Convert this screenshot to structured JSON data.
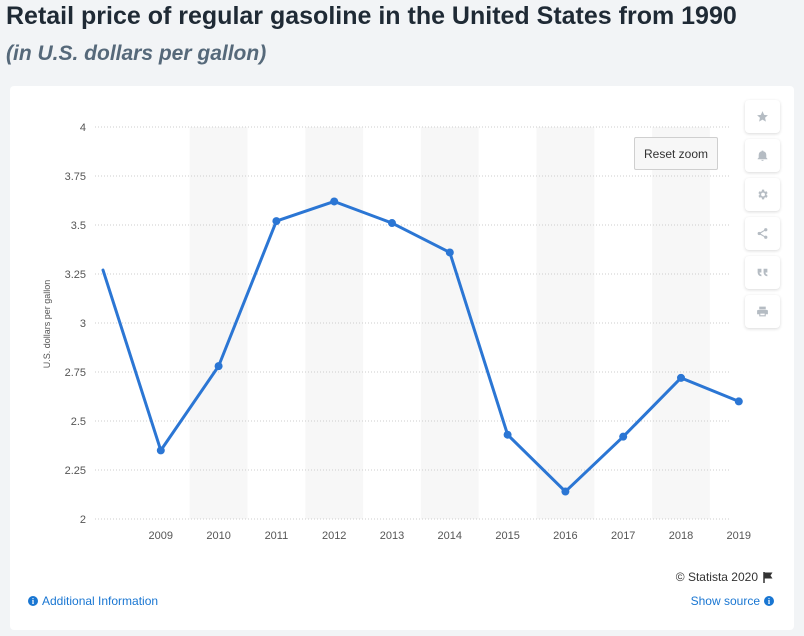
{
  "header": {
    "title": "Retail price of regular gasoline in the United States from 1990",
    "subtitle": "(in U.S. dollars per gallon)"
  },
  "chart_data": {
    "type": "line",
    "x": [
      "2008",
      "2009",
      "2010",
      "2011",
      "2012",
      "2013",
      "2014",
      "2015",
      "2016",
      "2017",
      "2018",
      "2019"
    ],
    "categories": [
      "2009",
      "2010",
      "2011",
      "2012",
      "2013",
      "2014",
      "2015",
      "2016",
      "2017",
      "2018",
      "2019"
    ],
    "series": [
      {
        "values": [
          3.27,
          2.35,
          2.78,
          3.52,
          3.62,
          3.51,
          3.36,
          2.43,
          2.14,
          2.42,
          2.72,
          2.6
        ]
      }
    ],
    "title": "",
    "xlabel": "",
    "ylabel": "U.S. dollars per gallon",
    "ylim": [
      2,
      4
    ],
    "yticks": [
      "2",
      "2.25",
      "2.5",
      "2.75",
      "3",
      "3.25",
      "3.5",
      "3.75",
      "4"
    ],
    "grid": true,
    "line_color": "#2b76d4",
    "band_color": "#f7f7f7"
  },
  "controls": {
    "reset_zoom": "Reset zoom",
    "icons": [
      "star-icon",
      "bell-icon",
      "gear-icon",
      "share-icon",
      "quote-icon",
      "print-icon"
    ]
  },
  "footer": {
    "credit": "© Statista 2020",
    "additional_info": "Additional Information",
    "show_source": "Show source"
  }
}
